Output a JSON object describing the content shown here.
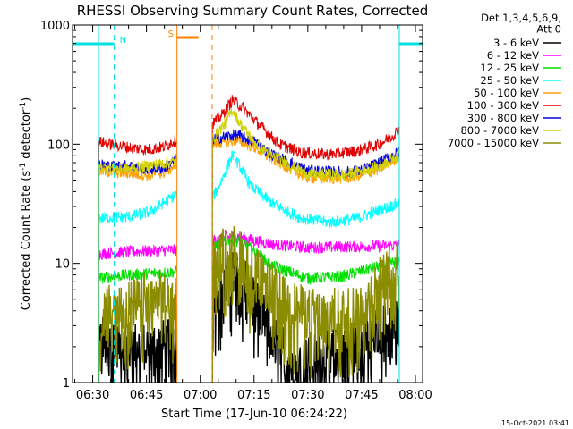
{
  "chart_data": {
    "type": "line",
    "title": "RHESSI Observing Summary Count Rates, Corrected",
    "xlabel": "Start Time (17-Jun-10 06:24:22)",
    "ylabel_main": "Corrected Count Rate (s",
    "ylabel_sup1": "-1",
    "ylabel_mid": " detector",
    "ylabel_sup2": "-1",
    "ylabel_end": ")",
    "y_scale": "log",
    "ylim": [
      1,
      1000
    ],
    "xlim_minutes": [
      24.37,
      122.0
    ],
    "x_axis_zero": "06:00",
    "x_ticks": [
      {
        "label": "06:30",
        "minutes": 30
      },
      {
        "label": "06:45",
        "minutes": 45
      },
      {
        "label": "07:00",
        "minutes": 60
      },
      {
        "label": "07:15",
        "minutes": 75
      },
      {
        "label": "07:30",
        "minutes": 90
      },
      {
        "label": "07:45",
        "minutes": 105
      },
      {
        "label": "08:00",
        "minutes": 120
      }
    ],
    "y_ticks": [
      {
        "label": "1",
        "value": 1
      },
      {
        "label": "10",
        "value": 10
      },
      {
        "label": "100",
        "value": 100
      },
      {
        "label": "1000",
        "value": 1000
      }
    ],
    "legend_header": [
      "Det 1,3,4,5,6,9,",
      "Att 0"
    ],
    "legend_position": "right",
    "gaps_minutes": [
      [
        0,
        31.6
      ],
      [
        53.5,
        63.3
      ],
      [
        115.5,
        130
      ]
    ],
    "series": [
      {
        "name": "3 - 6 keV",
        "color": "#000000",
        "mode": "low",
        "points": [
          [
            31.6,
            2.5
          ],
          [
            40,
            2.0
          ],
          [
            53.4,
            2.1
          ],
          [
            63.3,
            6
          ],
          [
            66,
            6.5
          ],
          [
            69,
            7.8
          ],
          [
            72,
            7.5
          ],
          [
            75,
            5.0
          ],
          [
            80,
            2.5
          ],
          [
            85,
            1.6
          ],
          [
            90,
            1.5
          ],
          [
            95,
            1.7
          ],
          [
            100,
            1.8
          ],
          [
            105,
            2.1
          ],
          [
            110,
            2.8
          ],
          [
            115.5,
            3.4
          ]
        ]
      },
      {
        "name": "6 - 12 keV",
        "color": "#ff00ff",
        "points": [
          [
            31.6,
            12.0
          ],
          [
            40,
            12.5
          ],
          [
            53.4,
            13.0
          ],
          [
            63.3,
            15.5
          ],
          [
            70,
            17.0
          ],
          [
            75,
            15.5
          ],
          [
            80,
            14.5
          ],
          [
            90,
            13.5
          ],
          [
            100,
            13.8
          ],
          [
            110,
            14.0
          ],
          [
            115.5,
            14.2
          ]
        ]
      },
      {
        "name": "12 - 25 keV",
        "color": "#00e000",
        "points": [
          [
            31.6,
            7.5
          ],
          [
            40,
            8.0
          ],
          [
            53.4,
            8.5
          ],
          [
            63.3,
            13.5
          ],
          [
            68,
            16.0
          ],
          [
            72,
            15.0
          ],
          [
            76,
            12.0
          ],
          [
            80,
            9.5
          ],
          [
            90,
            7.5
          ],
          [
            100,
            7.8
          ],
          [
            110,
            9.5
          ],
          [
            115.5,
            10.5
          ]
        ]
      },
      {
        "name": "25 - 50 keV",
        "color": "#00ffff",
        "points": [
          [
            31.6,
            24
          ],
          [
            40,
            24.5
          ],
          [
            46,
            27
          ],
          [
            53.4,
            38
          ],
          [
            63.3,
            35
          ],
          [
            66,
            50
          ],
          [
            69,
            82
          ],
          [
            71,
            65
          ],
          [
            74,
            45
          ],
          [
            80,
            32
          ],
          [
            88,
            24
          ],
          [
            96,
            22
          ],
          [
            104,
            24
          ],
          [
            110,
            28
          ],
          [
            115.5,
            32
          ]
        ]
      },
      {
        "name": "50 - 100 keV",
        "color": "#ffa000",
        "points": [
          [
            31.6,
            60
          ],
          [
            35,
            58
          ],
          [
            40,
            57
          ],
          [
            45,
            55
          ],
          [
            50,
            58
          ],
          [
            53.4,
            68
          ],
          [
            63.3,
            100
          ],
          [
            70,
            108
          ],
          [
            75,
            95
          ],
          [
            80,
            75
          ],
          [
            90,
            52
          ],
          [
            100,
            52
          ],
          [
            105,
            55
          ],
          [
            110,
            62
          ],
          [
            115.5,
            80
          ]
        ]
      },
      {
        "name": "100 - 300 keV",
        "color": "#e00000",
        "points": [
          [
            31.6,
            105
          ],
          [
            35,
            100
          ],
          [
            40,
            94
          ],
          [
            45,
            90
          ],
          [
            50,
            95
          ],
          [
            53.4,
            110
          ],
          [
            63.3,
            148
          ],
          [
            66,
            175
          ],
          [
            69,
            235
          ],
          [
            72,
            200
          ],
          [
            76,
            150
          ],
          [
            82,
            100
          ],
          [
            88,
            85
          ],
          [
            96,
            82
          ],
          [
            104,
            88
          ],
          [
            110,
            100
          ],
          [
            114,
            120
          ],
          [
            115.5,
            135
          ]
        ]
      },
      {
        "name": "300 - 800 keV",
        "color": "#0000e0",
        "points": [
          [
            31.6,
            68
          ],
          [
            35,
            65
          ],
          [
            40,
            66
          ],
          [
            45,
            62
          ],
          [
            50,
            63
          ],
          [
            53.4,
            76
          ],
          [
            63.3,
            110
          ],
          [
            70,
            120
          ],
          [
            75,
            105
          ],
          [
            80,
            82
          ],
          [
            90,
            60
          ],
          [
            100,
            58
          ],
          [
            105,
            60
          ],
          [
            110,
            70
          ],
          [
            115.5,
            86
          ]
        ]
      },
      {
        "name": "800 - 7000 keV",
        "color": "#d2d200",
        "points": [
          [
            31.6,
            64
          ],
          [
            40,
            62
          ],
          [
            53.4,
            72
          ],
          [
            63.3,
            110
          ],
          [
            67,
            150
          ],
          [
            69,
            195
          ],
          [
            71,
            150
          ],
          [
            75,
            105
          ],
          [
            80,
            80
          ],
          [
            90,
            56
          ],
          [
            100,
            55
          ],
          [
            110,
            65
          ],
          [
            115.5,
            82
          ]
        ]
      },
      {
        "name": "7000 - 15000 keV",
        "color": "#8c8c00",
        "mode": "low",
        "points": [
          [
            31.6,
            3.8
          ],
          [
            40,
            4.5
          ],
          [
            48,
            5.5
          ],
          [
            53.4,
            5.0
          ],
          [
            63.3,
            10
          ],
          [
            66,
            12
          ],
          [
            69,
            13
          ],
          [
            72,
            11
          ],
          [
            75,
            8.5
          ],
          [
            80,
            6.0
          ],
          [
            85,
            4.5
          ],
          [
            90,
            3.8
          ],
          [
            100,
            3.8
          ],
          [
            105,
            4.5
          ],
          [
            110,
            7
          ],
          [
            115.5,
            10.5
          ]
        ]
      }
    ],
    "annotations": [
      {
        "text": "N",
        "color": "#00e0e0",
        "x_minutes": 36,
        "bar_from": 24.37,
        "bar_to": 36,
        "dash_x": 36,
        "solid_x": 31.6
      },
      {
        "text": "N",
        "color": "#00e0e0",
        "x_minutes": 115.5,
        "bar_from": 115.5,
        "bar_to": 122,
        "dash_x": 122,
        "solid_x": 115.5,
        "hidden_label": true
      },
      {
        "text": "S",
        "color": "#ff8000",
        "x_minutes": 53.5,
        "bar_from": 53.5,
        "bar_to": 59.5,
        "dash_x": 63.3,
        "solid_x": 53.5
      }
    ]
  },
  "footer": {
    "timestamp": "15-Oct-2021 03:41"
  }
}
